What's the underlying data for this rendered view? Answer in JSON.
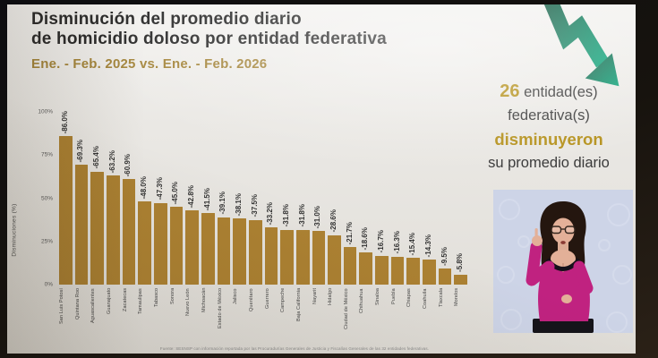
{
  "slide": {
    "title": [
      "Disminución del promedio diario",
      "de homicidio doloso por entidad federativa"
    ],
    "subtitle": "Ene. - Feb. 2025 vs. Ene. - Feb. 2026",
    "highlight": {
      "number": "26",
      "after_number": " entidad(es)",
      "line2": "federativa(s)",
      "emphasis": "disminuyeron",
      "line4": "su promedio diario"
    },
    "source": "Fuente: SESNSP con información reportada por las Procuradurías Generales de Justicia y Fiscalías Generales de las 32 entidades federativas."
  },
  "chart_data": {
    "type": "bar",
    "title": "",
    "xlabel": "",
    "ylabel": "Disminuciones (%)",
    "ylim": [
      0,
      100
    ],
    "grid": false,
    "legend": false,
    "bar_color": "#ac8132",
    "yticks": [
      {
        "label": "100%",
        "value": 100
      },
      {
        "label": "75%",
        "value": 75
      },
      {
        "label": "50%",
        "value": 50
      },
      {
        "label": "25%",
        "value": 25
      },
      {
        "label": "0%",
        "value": 0
      }
    ],
    "categories": [
      "San Luis Potosí",
      "Quintana Roo",
      "Aguascalientes",
      "Guanajuato",
      "Zacatecas",
      "Tamaulipas",
      "Tabasco",
      "Sonora",
      "Nuevo León",
      "Michoacán",
      "Estado de México",
      "Jalisco",
      "Querétaro",
      "Guerrero",
      "Campeche",
      "Baja California",
      "Nayarit",
      "Hidalgo",
      "Ciudad de México",
      "Chihuahua",
      "Sinaloa",
      "Puebla",
      "Chiapas",
      "Coahuila",
      "Tlaxcala",
      "Morelos"
    ],
    "values": [
      -86.0,
      -69.3,
      -65.4,
      -63.2,
      -60.9,
      -48.0,
      -47.3,
      -45.0,
      -42.8,
      -41.5,
      -39.1,
      -38.1,
      -37.5,
      -33.2,
      -31.8,
      -31.8,
      -31.0,
      -28.6,
      -21.7,
      -18.6,
      -16.7,
      -16.3,
      -15.4,
      -14.3,
      -9.5,
      -5.8
    ],
    "bar_labels": [
      "-86.0%",
      "-69.3%",
      "-65.4%",
      "-63.2%",
      "-60.9%",
      "-48.0%",
      "-47.3%",
      "-45.0%",
      "-42.8%",
      "-41.5%",
      "-39.1%",
      "-38.1%",
      "-37.5%",
      "-33.2%",
      "-31.8%",
      "-31.8%",
      "-31.0%",
      "-28.6%",
      "-21.7%",
      "-18.6%",
      "-16.7%",
      "-16.3%",
      "-15.4%",
      "-14.3%",
      "-9.5%",
      "-5.8%"
    ]
  },
  "decorations": {
    "arrow_icon": "falling-trend-arrow",
    "arrow_gradient": [
      "#1c5c46",
      "#14a67d"
    ],
    "interpreter_image": "sign-language-interpreter",
    "colors": {
      "accent_gold": "#b5911c",
      "subtitle_gold": "#a5863c",
      "title_dark": "#2b2b2b",
      "bar_gold": "#ac8132",
      "interpreter_bg": "#cdd4e7",
      "interpreter_shirt": "#c02280"
    }
  }
}
